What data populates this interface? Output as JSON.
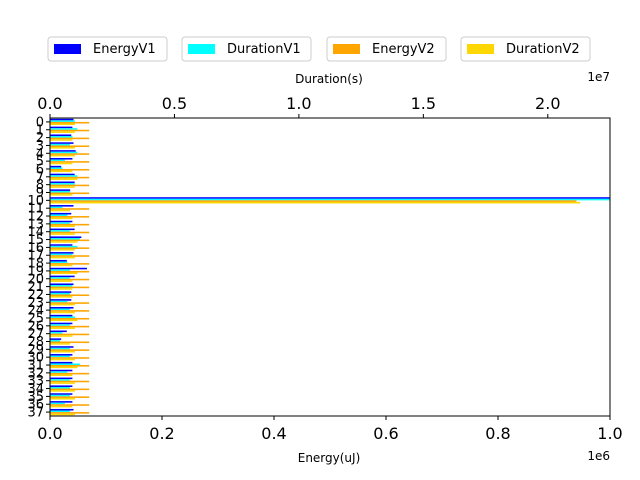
{
  "chart_data": {
    "type": "bar",
    "orientation": "horizontal",
    "title": "",
    "legend": {
      "placement": "top",
      "entries": [
        {
          "name": "EnergyV1",
          "color": "#0000ff"
        },
        {
          "name": "DurationV1",
          "color": "#00ffff"
        },
        {
          "name": "EnergyV2",
          "color": "#ffa500"
        },
        {
          "name": "DurationV2",
          "color": "#ffd700"
        }
      ]
    },
    "bottom_axis": {
      "label": "Energy(uJ)",
      "range": [
        0,
        1000000
      ],
      "ticks": [
        0,
        200000,
        400000,
        600000,
        800000,
        1000000
      ],
      "tick_labels": [
        "0.0",
        "0.2",
        "0.4",
        "0.6",
        "0.8",
        "1.0"
      ],
      "offset_label": "1e6"
    },
    "top_axis": {
      "label": "Duration(s)",
      "range": [
        0,
        22500000
      ],
      "ticks": [
        0,
        5000000,
        10000000,
        15000000,
        20000000
      ],
      "tick_labels": [
        "0.0",
        "0.5",
        "1.0",
        "1.5",
        "2.0"
      ],
      "offset_label": "1e7"
    },
    "categories": [
      "0",
      "1",
      "2",
      "3",
      "4",
      "5",
      "6",
      "7",
      "8",
      "9",
      "10",
      "11",
      "12",
      "13",
      "14",
      "15",
      "16",
      "17",
      "18",
      "19",
      "20",
      "21",
      "22",
      "23",
      "24",
      "25",
      "26",
      "27",
      "28",
      "29",
      "30",
      "31",
      "32",
      "33",
      "34",
      "35",
      "36",
      "37"
    ],
    "grid": false,
    "series": [
      {
        "name": "EnergyV1",
        "axis": "bottom",
        "color": "#0000ff",
        "values": [
          42000,
          40000,
          38000,
          42000,
          46000,
          40000,
          20000,
          44000,
          44000,
          36000,
          1000000,
          42000,
          38000,
          40000,
          44000,
          56000,
          40000,
          42000,
          30000,
          66000,
          44000,
          42000,
          38000,
          38000,
          42000,
          40000,
          40000,
          30000,
          20000,
          42000,
          40000,
          40000,
          40000,
          40000,
          40000,
          40000,
          40000,
          42000
        ]
      },
      {
        "name": "DurationV1",
        "axis": "top",
        "color": "#00ffff",
        "values": [
          1000000,
          1100000,
          900000,
          800000,
          1100000,
          600000,
          500000,
          1100000,
          1000000,
          800000,
          22500000,
          500000,
          700000,
          800000,
          800000,
          1200000,
          1100000,
          900000,
          700000,
          800000,
          800000,
          900000,
          800000,
          700000,
          800000,
          1000000,
          800000,
          500000,
          400000,
          800000,
          800000,
          1200000,
          700000,
          800000,
          800000,
          800000,
          600000,
          800000
        ]
      },
      {
        "name": "EnergyV2",
        "axis": "bottom",
        "color": "#ffa500",
        "values": [
          70000,
          70000,
          70000,
          70000,
          70000,
          70000,
          70000,
          70000,
          70000,
          70000,
          940000,
          70000,
          70000,
          70000,
          70000,
          70000,
          70000,
          70000,
          70000,
          70000,
          70000,
          70000,
          70000,
          70000,
          70000,
          70000,
          70000,
          70000,
          70000,
          70000,
          70000,
          70000,
          70000,
          70000,
          70000,
          70000,
          70000,
          70000
        ]
      },
      {
        "name": "DurationV2",
        "axis": "top",
        "color": "#ffd700",
        "values": [
          1000000,
          1000000,
          900000,
          1000000,
          1000000,
          900000,
          900000,
          1100000,
          1000000,
          900000,
          21300000,
          800000,
          900000,
          1000000,
          1000000,
          1100000,
          1000000,
          1000000,
          900000,
          1100000,
          900000,
          900000,
          900000,
          1000000,
          1000000,
          1100000,
          1000000,
          900000,
          800000,
          1000000,
          1000000,
          1100000,
          900000,
          1000000,
          1000000,
          1000000,
          900000,
          1000000
        ]
      }
    ]
  }
}
